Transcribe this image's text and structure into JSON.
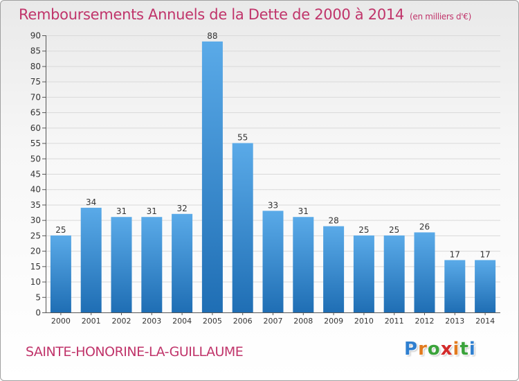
{
  "title": "Remboursements Annuels de la Dette de 2000 à 2014",
  "subtitle": "(en milliers d'€)",
  "commune": "SAINTE-HONORINE-LA-GUILLAUME",
  "logo": {
    "letters": [
      {
        "char": "P",
        "color": "#2f7fd0"
      },
      {
        "char": "r",
        "color": "#e27a1e"
      },
      {
        "char": "o",
        "color": "#3aa33a"
      },
      {
        "char": "x",
        "color": "#d42a2a"
      },
      {
        "char": "i",
        "color": "#e27a1e"
      },
      {
        "char": "t",
        "color": "#3aa33a"
      },
      {
        "char": "i",
        "color": "#2f7fd0"
      }
    ]
  },
  "colors": {
    "bar_top": "#5aaae8",
    "bar_bottom": "#1f6eb4",
    "accent": "#c0346a"
  },
  "chart_data": {
    "type": "bar",
    "title": "Remboursements Annuels de la Dette de 2000 à 2014",
    "subtitle": "(en milliers d'€)",
    "categories": [
      "2000",
      "2001",
      "2002",
      "2003",
      "2004",
      "2005",
      "2006",
      "2007",
      "2008",
      "2009",
      "2010",
      "2011",
      "2012",
      "2013",
      "2014"
    ],
    "values": [
      25,
      34,
      31,
      31,
      32,
      88,
      55,
      33,
      31,
      28,
      25,
      25,
      26,
      17,
      17
    ],
    "ylim": [
      0,
      90
    ],
    "yticks": [
      0,
      5,
      10,
      15,
      20,
      25,
      30,
      35,
      40,
      45,
      50,
      55,
      60,
      65,
      70,
      75,
      80,
      85,
      90
    ],
    "grid": true,
    "data_labels": true
  }
}
